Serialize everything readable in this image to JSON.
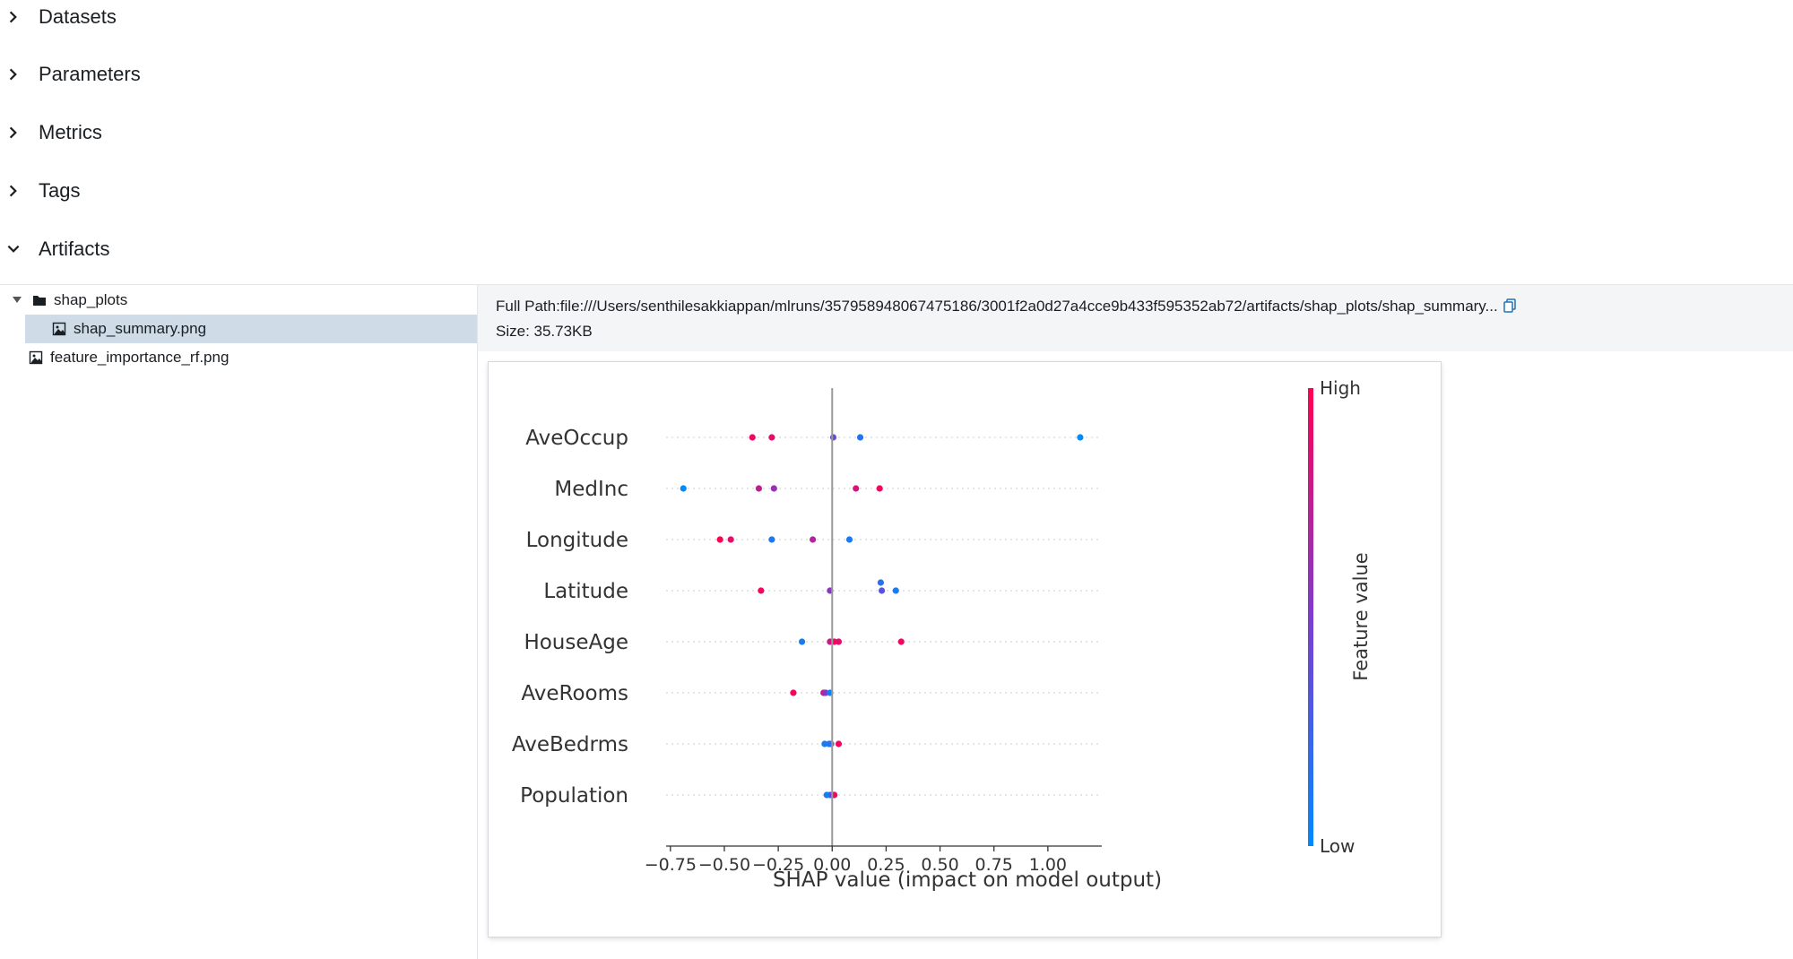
{
  "sections": [
    {
      "label": "Datasets",
      "expanded": false
    },
    {
      "label": "Parameters",
      "expanded": false
    },
    {
      "label": "Metrics",
      "expanded": false
    },
    {
      "label": "Tags",
      "expanded": false
    },
    {
      "label": "Artifacts",
      "expanded": true
    }
  ],
  "artifacts": {
    "tree": {
      "folder": {
        "label": "shap_plots",
        "icon": "folder-icon"
      },
      "child": {
        "label": "shap_summary.png",
        "icon": "image-file-icon"
      },
      "root_file": {
        "label": "feature_importance_rf.png",
        "icon": "image-file-icon"
      }
    },
    "info": {
      "full_path": "Full Path:file:///Users/senthilesakkiappan/mlruns/357958948067475186/3001f2a0d27a4cce9b433f595352ab72/artifacts/shap_plots/shap_summary...",
      "size": "Size: 35.73KB"
    }
  },
  "colors": {
    "high": "#ff0052",
    "low": "#008afb",
    "axis": "#333333"
  },
  "chart_data": {
    "type": "scatter",
    "title": "",
    "xlabel": "SHAP value (impact on model output)",
    "ylabel": "",
    "xlim": [
      -0.77,
      1.25
    ],
    "xticks": [
      -0.75,
      -0.5,
      -0.25,
      0.0,
      0.25,
      0.5,
      0.75,
      1.0
    ],
    "xtick_labels": [
      "−0.75",
      "−0.50",
      "−0.25",
      "0.00",
      "0.25",
      "0.50",
      "0.75",
      "1.00"
    ],
    "features": [
      "AveOccup",
      "MedInc",
      "Longitude",
      "Latitude",
      "HouseAge",
      "AveRooms",
      "AveBedrms",
      "Population"
    ],
    "colorbar": {
      "label": "Feature value",
      "high_label": "High",
      "low_label": "Low"
    },
    "points": [
      {
        "feature": "AveOccup",
        "x": -0.37,
        "v": 0.95,
        "j": 0
      },
      {
        "feature": "AveOccup",
        "x": -0.28,
        "v": 0.9,
        "j": 0
      },
      {
        "feature": "AveOccup",
        "x": 0.005,
        "v": 0.4,
        "j": 0
      },
      {
        "feature": "AveOccup",
        "x": 0.13,
        "v": 0.15,
        "j": 0
      },
      {
        "feature": "AveOccup",
        "x": 1.15,
        "v": 0.0,
        "j": 0
      },
      {
        "feature": "MedInc",
        "x": -0.69,
        "v": 0.0,
        "j": 0
      },
      {
        "feature": "MedInc",
        "x": -0.34,
        "v": 0.75,
        "j": 0
      },
      {
        "feature": "MedInc",
        "x": -0.27,
        "v": 0.6,
        "j": 0
      },
      {
        "feature": "MedInc",
        "x": 0.11,
        "v": 0.85,
        "j": 0
      },
      {
        "feature": "MedInc",
        "x": 0.22,
        "v": 0.95,
        "j": 0
      },
      {
        "feature": "Longitude",
        "x": -0.52,
        "v": 1.0,
        "j": 0
      },
      {
        "feature": "Longitude",
        "x": -0.47,
        "v": 0.9,
        "j": 0
      },
      {
        "feature": "Longitude",
        "x": -0.28,
        "v": 0.1,
        "j": 0
      },
      {
        "feature": "Longitude",
        "x": -0.09,
        "v": 0.7,
        "j": 0
      },
      {
        "feature": "Longitude",
        "x": 0.08,
        "v": 0.1,
        "j": 0
      },
      {
        "feature": "Latitude",
        "x": -0.33,
        "v": 0.95,
        "j": 0
      },
      {
        "feature": "Latitude",
        "x": -0.01,
        "v": 0.55,
        "j": 0
      },
      {
        "feature": "Latitude",
        "x": 0.225,
        "v": 0.15,
        "j": 1
      },
      {
        "feature": "Latitude",
        "x": 0.23,
        "v": 0.35,
        "j": 0
      },
      {
        "feature": "Latitude",
        "x": 0.295,
        "v": 0.1,
        "j": 0
      },
      {
        "feature": "HouseAge",
        "x": -0.14,
        "v": 0.1,
        "j": 0
      },
      {
        "feature": "HouseAge",
        "x": -0.01,
        "v": 0.8,
        "j": 0
      },
      {
        "feature": "HouseAge",
        "x": 0.01,
        "v": 0.95,
        "j": 0
      },
      {
        "feature": "HouseAge",
        "x": 0.03,
        "v": 0.9,
        "j": 0
      },
      {
        "feature": "HouseAge",
        "x": 0.32,
        "v": 0.95,
        "j": 0
      },
      {
        "feature": "AveRooms",
        "x": -0.18,
        "v": 0.95,
        "j": 0
      },
      {
        "feature": "AveRooms",
        "x": -0.04,
        "v": 0.75,
        "j": 0
      },
      {
        "feature": "AveRooms",
        "x": -0.03,
        "v": 0.55,
        "j": 0
      },
      {
        "feature": "AveRooms",
        "x": -0.01,
        "v": 0.05,
        "j": 0
      },
      {
        "feature": "AveBedrms",
        "x": -0.035,
        "v": 0.1,
        "j": 0
      },
      {
        "feature": "AveBedrms",
        "x": -0.015,
        "v": 0.05,
        "j": 0
      },
      {
        "feature": "AveBedrms",
        "x": -0.005,
        "v": 0.2,
        "j": 0
      },
      {
        "feature": "AveBedrms",
        "x": 0.03,
        "v": 0.95,
        "j": 0
      },
      {
        "feature": "Population",
        "x": -0.025,
        "v": 0.1,
        "j": 0
      },
      {
        "feature": "Population",
        "x": -0.01,
        "v": 0.05,
        "j": 0
      },
      {
        "feature": "Population",
        "x": 0.0,
        "v": 0.5,
        "j": 0
      },
      {
        "feature": "Population",
        "x": 0.01,
        "v": 0.95,
        "j": 0
      }
    ]
  }
}
